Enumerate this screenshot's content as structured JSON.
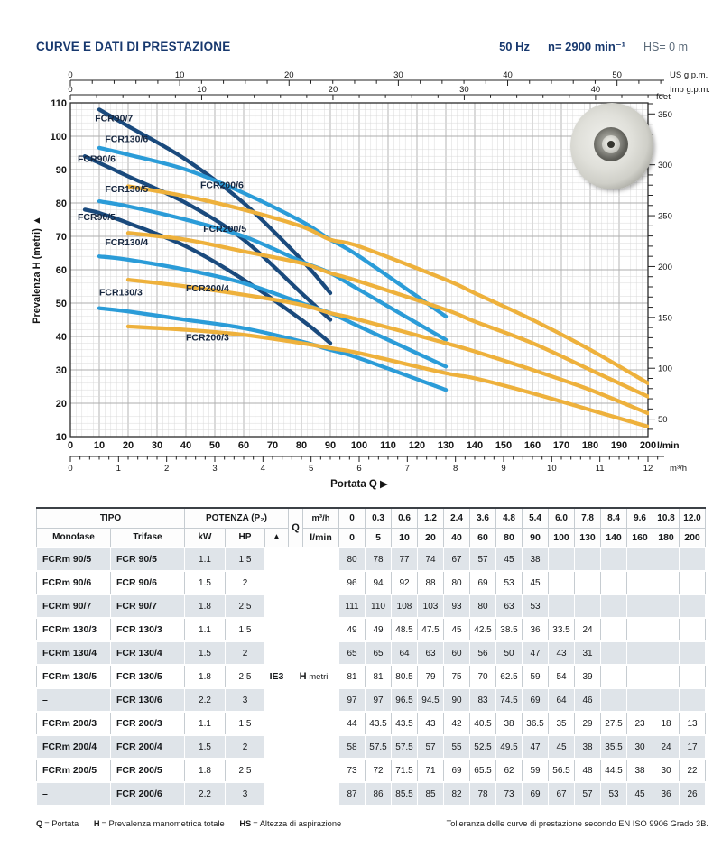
{
  "header": {
    "title": "CURVE E DATI DI PRESTAZIONE",
    "frequency": "50 Hz",
    "speed": "n= 2900 min⁻¹",
    "suction_head": "HS= 0 m"
  },
  "chart_data": {
    "type": "line",
    "x_axis": {
      "label": "Portata Q ▶",
      "unit_primary": "l/min",
      "range_lmin": [
        0,
        200
      ],
      "ticks_lmin": [
        0,
        10,
        20,
        30,
        40,
        50,
        60,
        70,
        80,
        90,
        100,
        110,
        120,
        130,
        140,
        150,
        160,
        170,
        180,
        190,
        200
      ],
      "unit_secondary": "m³/h",
      "ticks_m3h": [
        0,
        1,
        2,
        3,
        4,
        5,
        6,
        7,
        8,
        9,
        10,
        11,
        12
      ]
    },
    "y_axis": {
      "label": "Prevalenza H (metri) ▲",
      "range_m": [
        10,
        110
      ],
      "ticks_m": [
        10,
        20,
        30,
        40,
        50,
        60,
        70,
        80,
        90,
        100,
        110
      ],
      "unit_right": "feet",
      "ticks_feet": [
        50,
        100,
        150,
        200,
        250,
        300,
        350
      ]
    },
    "top_axes": [
      {
        "label": "US g.p.m.",
        "lmin_per_unit": 3.7854,
        "major_ticks": [
          0,
          10,
          20,
          30,
          40,
          50
        ]
      },
      {
        "label": "Imp g.p.m.",
        "lmin_per_unit": 4.5461,
        "major_ticks": [
          0,
          10,
          20,
          30,
          40
        ]
      }
    ],
    "grid": {
      "minor_step_lmin": 2,
      "minor_step_m": 2,
      "major_step": 10
    },
    "colors": {
      "navy": "#1a4a7d",
      "blue": "#2b9cd8",
      "yellow": "#eeb13c"
    },
    "series": [
      {
        "name": "FCR90/5",
        "color": "navy",
        "label_xy": [
          2.5,
          74.8
        ],
        "points": [
          [
            5,
            78
          ],
          [
            10,
            77
          ],
          [
            20,
            74
          ],
          [
            40,
            67
          ],
          [
            60,
            57
          ],
          [
            80,
            45
          ],
          [
            90,
            38
          ]
        ]
      },
      {
        "name": "FCR90/6",
        "color": "navy",
        "label_xy": [
          2.5,
          92.3
        ],
        "points": [
          [
            5,
            94
          ],
          [
            10,
            92
          ],
          [
            20,
            88
          ],
          [
            40,
            80
          ],
          [
            60,
            69
          ],
          [
            80,
            53
          ],
          [
            90,
            45
          ]
        ]
      },
      {
        "name": "FCR90/7",
        "color": "navy",
        "label_xy": [
          8.5,
          104.5
        ],
        "points": [
          [
            10,
            108
          ],
          [
            20,
            103
          ],
          [
            40,
            93
          ],
          [
            60,
            80
          ],
          [
            80,
            63
          ],
          [
            90,
            53
          ]
        ]
      },
      {
        "name": "FCR130/3",
        "color": "blue",
        "label_xy": [
          10,
          52.3
        ],
        "points": [
          [
            10,
            48.5
          ],
          [
            20,
            47.5
          ],
          [
            40,
            45
          ],
          [
            60,
            42.5
          ],
          [
            80,
            38.5
          ],
          [
            90,
            36
          ],
          [
            100,
            33.5
          ],
          [
            130,
            24
          ]
        ]
      },
      {
        "name": "FCR130/4",
        "color": "blue",
        "label_xy": [
          12,
          67.3
        ],
        "points": [
          [
            10,
            64
          ],
          [
            20,
            63
          ],
          [
            40,
            60
          ],
          [
            60,
            56
          ],
          [
            80,
            50
          ],
          [
            90,
            47
          ],
          [
            100,
            43
          ],
          [
            130,
            31
          ]
        ]
      },
      {
        "name": "FCR130/5",
        "color": "blue",
        "label_xy": [
          12,
          83.3
        ],
        "points": [
          [
            10,
            80.5
          ],
          [
            20,
            79
          ],
          [
            40,
            75
          ],
          [
            60,
            70
          ],
          [
            80,
            62.5
          ],
          [
            90,
            59
          ],
          [
            100,
            54
          ],
          [
            130,
            39
          ]
        ]
      },
      {
        "name": "FCR130/6",
        "color": "blue",
        "label_xy": [
          12,
          98.3
        ],
        "points": [
          [
            10,
            96.5
          ],
          [
            20,
            94.5
          ],
          [
            40,
            90
          ],
          [
            60,
            83
          ],
          [
            80,
            74.5
          ],
          [
            90,
            69
          ],
          [
            100,
            64
          ],
          [
            130,
            46
          ]
        ]
      },
      {
        "name": "FCR200/3",
        "color": "yellow",
        "label_xy": [
          40,
          38.8
        ],
        "points": [
          [
            20,
            43
          ],
          [
            40,
            42
          ],
          [
            60,
            40.5
          ],
          [
            80,
            38
          ],
          [
            90,
            36.5
          ],
          [
            100,
            35
          ],
          [
            130,
            29
          ],
          [
            140,
            27.5
          ],
          [
            160,
            23
          ],
          [
            180,
            18
          ],
          [
            200,
            13
          ]
        ]
      },
      {
        "name": "FCR200/4",
        "color": "yellow",
        "label_xy": [
          40,
          53.5
        ],
        "points": [
          [
            20,
            57
          ],
          [
            40,
            55
          ],
          [
            60,
            52.5
          ],
          [
            80,
            49.5
          ],
          [
            90,
            47
          ],
          [
            100,
            45
          ],
          [
            130,
            38
          ],
          [
            140,
            35.5
          ],
          [
            160,
            30
          ],
          [
            180,
            24
          ],
          [
            200,
            17
          ]
        ]
      },
      {
        "name": "FCR200/5",
        "color": "yellow",
        "label_xy": [
          46,
          71.3
        ],
        "points": [
          [
            20,
            71
          ],
          [
            40,
            69
          ],
          [
            60,
            65.5
          ],
          [
            80,
            62
          ],
          [
            90,
            59
          ],
          [
            100,
            56.5
          ],
          [
            130,
            48
          ],
          [
            140,
            44.5
          ],
          [
            160,
            38
          ],
          [
            180,
            30
          ],
          [
            200,
            22
          ]
        ]
      },
      {
        "name": "FCR200/6",
        "color": "yellow",
        "label_xy": [
          45,
          84.5
        ],
        "points": [
          [
            20,
            85
          ],
          [
            40,
            82
          ],
          [
            60,
            78
          ],
          [
            80,
            73
          ],
          [
            90,
            69
          ],
          [
            100,
            67
          ],
          [
            130,
            57
          ],
          [
            140,
            53
          ],
          [
            160,
            45
          ],
          [
            180,
            36
          ],
          [
            200,
            26
          ]
        ]
      }
    ]
  },
  "table": {
    "tipo_label": "TIPO",
    "monofase_label": "Monofase",
    "trifase_label": "Trifase",
    "potenza_label": "POTENZA (P₂)",
    "kw_label": "kW",
    "hp_label": "HP",
    "arrow_symbol": "▲",
    "q_label": "Q",
    "m3h_label": "m³/h",
    "lmin_label": "l/min",
    "ie3_label": "IE3",
    "h_label": "H",
    "metri_label": "metri",
    "q_m3h": [
      "0",
      "0.3",
      "0.6",
      "1.2",
      "2.4",
      "3.6",
      "4.8",
      "5.4",
      "6.0",
      "7.8",
      "8.4",
      "9.6",
      "10.8",
      "12.0"
    ],
    "q_lmin": [
      "0",
      "5",
      "10",
      "20",
      "40",
      "60",
      "80",
      "90",
      "100",
      "130",
      "140",
      "160",
      "180",
      "200"
    ],
    "rows": [
      {
        "monofase": "FCRm 90/5",
        "trifase": "FCR 90/5",
        "kw": "1.1",
        "hp": "1.5",
        "values": [
          "80",
          "78",
          "77",
          "74",
          "67",
          "57",
          "45",
          "38",
          "",
          "",
          "",
          "",
          "",
          ""
        ]
      },
      {
        "monofase": "FCRm 90/6",
        "trifase": "FCR 90/6",
        "kw": "1.5",
        "hp": "2",
        "values": [
          "96",
          "94",
          "92",
          "88",
          "80",
          "69",
          "53",
          "45",
          "",
          "",
          "",
          "",
          "",
          ""
        ]
      },
      {
        "monofase": "FCRm 90/7",
        "trifase": "FCR 90/7",
        "kw": "1.8",
        "hp": "2.5",
        "values": [
          "111",
          "110",
          "108",
          "103",
          "93",
          "80",
          "63",
          "53",
          "",
          "",
          "",
          "",
          "",
          ""
        ]
      },
      {
        "monofase": "FCRm 130/3",
        "trifase": "FCR 130/3",
        "kw": "1.1",
        "hp": "1.5",
        "values": [
          "49",
          "49",
          "48.5",
          "47.5",
          "45",
          "42.5",
          "38.5",
          "36",
          "33.5",
          "24",
          "",
          "",
          "",
          ""
        ]
      },
      {
        "monofase": "FCRm 130/4",
        "trifase": "FCR 130/4",
        "kw": "1.5",
        "hp": "2",
        "values": [
          "65",
          "65",
          "64",
          "63",
          "60",
          "56",
          "50",
          "47",
          "43",
          "31",
          "",
          "",
          "",
          ""
        ]
      },
      {
        "monofase": "FCRm 130/5",
        "trifase": "FCR 130/5",
        "kw": "1.8",
        "hp": "2.5",
        "values": [
          "81",
          "81",
          "80.5",
          "79",
          "75",
          "70",
          "62.5",
          "59",
          "54",
          "39",
          "",
          "",
          "",
          ""
        ]
      },
      {
        "monofase": "–",
        "trifase": "FCR 130/6",
        "kw": "2.2",
        "hp": "3",
        "values": [
          "97",
          "97",
          "96.5",
          "94.5",
          "90",
          "83",
          "74.5",
          "69",
          "64",
          "46",
          "",
          "",
          "",
          ""
        ]
      },
      {
        "monofase": "FCRm 200/3",
        "trifase": "FCR 200/3",
        "kw": "1.1",
        "hp": "1.5",
        "values": [
          "44",
          "43.5",
          "43.5",
          "43",
          "42",
          "40.5",
          "38",
          "36.5",
          "35",
          "29",
          "27.5",
          "23",
          "18",
          "13"
        ]
      },
      {
        "monofase": "FCRm 200/4",
        "trifase": "FCR 200/4",
        "kw": "1.5",
        "hp": "2",
        "values": [
          "58",
          "57.5",
          "57.5",
          "57",
          "55",
          "52.5",
          "49.5",
          "47",
          "45",
          "38",
          "35.5",
          "30",
          "24",
          "17"
        ]
      },
      {
        "monofase": "FCRm 200/5",
        "trifase": "FCR 200/5",
        "kw": "1.8",
        "hp": "2.5",
        "values": [
          "73",
          "72",
          "71.5",
          "71",
          "69",
          "65.5",
          "62",
          "59",
          "56.5",
          "48",
          "44.5",
          "38",
          "30",
          "22"
        ]
      },
      {
        "monofase": "–",
        "trifase": "FCR 200/6",
        "kw": "2.2",
        "hp": "3",
        "values": [
          "87",
          "86",
          "85.5",
          "85",
          "82",
          "78",
          "73",
          "69",
          "67",
          "57",
          "53",
          "45",
          "36",
          "26"
        ]
      }
    ]
  },
  "footer": {
    "legend": [
      {
        "term": "Q",
        "definition": "= Portata"
      },
      {
        "term": "H",
        "definition": "= Prevalenza manometrica totale"
      },
      {
        "term": "HS",
        "definition": "= Altezza di aspirazione"
      }
    ],
    "tolerance": "Tolleranza delle curve di prestazione secondo EN ISO 9906 Grado 3B."
  }
}
